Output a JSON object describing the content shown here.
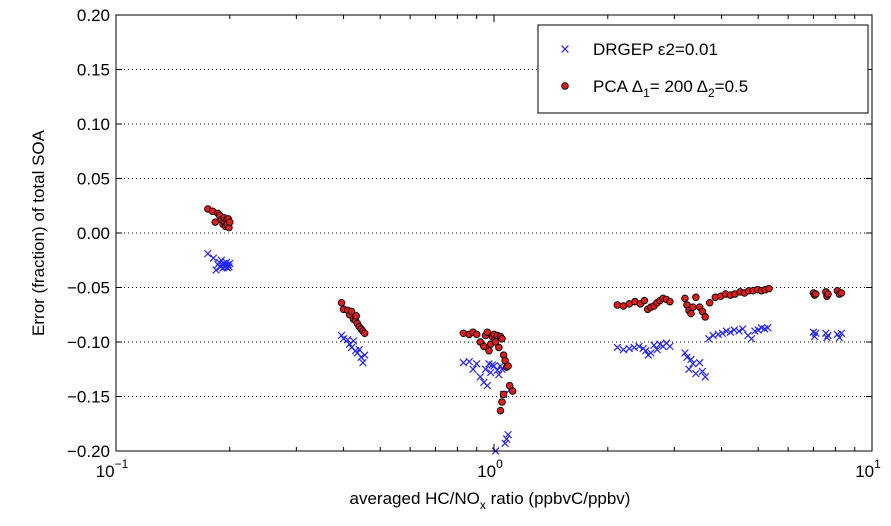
{
  "chart_data": {
    "type": "scatter",
    "xscale": "log",
    "xlim": [
      0.1,
      10
    ],
    "ylim": [
      -0.2,
      0.2
    ],
    "grid": "dotted horizontal",
    "legend_position": "top-right",
    "x_ticks": [
      {
        "value": 0.1,
        "base": "10",
        "exp": "−1"
      },
      {
        "value": 1,
        "base": "10",
        "exp": "0"
      },
      {
        "value": 10,
        "base": "10",
        "exp": "1"
      }
    ],
    "y_ticks": [
      {
        "value": 0.2,
        "label": "0.20"
      },
      {
        "value": 0.15,
        "label": "0.15"
      },
      {
        "value": 0.1,
        "label": "0.10"
      },
      {
        "value": 0.05,
        "label": "0.05"
      },
      {
        "value": 0,
        "label": "0.00"
      },
      {
        "value": -0.05,
        "label": "−0.05"
      },
      {
        "value": -0.1,
        "label": "−0.10"
      },
      {
        "value": -0.15,
        "label": "−0.15"
      },
      {
        "value": -0.2,
        "label": "−0.20"
      }
    ],
    "ylabel": "Error (fraction) of total SOA",
    "xlabel": {
      "before": "averaged HC/NO",
      "sub": "x",
      "after": " ratio (ppbvC/ppbv)"
    },
    "series": [
      {
        "name": "DRGEP ε2=0.01",
        "legend": [
          {
            "t": "DRGEP   ε2=0.01"
          }
        ],
        "marker": "x",
        "color": "#2424ff",
        "points": [
          [
            0.175,
            -0.019
          ],
          [
            0.181,
            -0.023
          ],
          [
            0.184,
            -0.034
          ],
          [
            0.186,
            -0.029
          ],
          [
            0.188,
            -0.027
          ],
          [
            0.189,
            -0.031
          ],
          [
            0.19,
            -0.025
          ],
          [
            0.191,
            -0.029
          ],
          [
            0.192,
            -0.032
          ],
          [
            0.193,
            -0.028
          ],
          [
            0.194,
            -0.031
          ],
          [
            0.195,
            -0.03
          ],
          [
            0.196,
            -0.027
          ],
          [
            0.197,
            -0.032
          ],
          [
            0.198,
            -0.029
          ],
          [
            0.199,
            -0.031
          ],
          [
            0.2,
            -0.028
          ],
          [
            0.395,
            -0.094
          ],
          [
            0.4,
            -0.097
          ],
          [
            0.41,
            -0.098
          ],
          [
            0.415,
            -0.102
          ],
          [
            0.42,
            -0.105
          ],
          [
            0.425,
            -0.099
          ],
          [
            0.43,
            -0.108
          ],
          [
            0.435,
            -0.11
          ],
          [
            0.44,
            -0.107
          ],
          [
            0.445,
            -0.114
          ],
          [
            0.45,
            -0.119
          ],
          [
            0.455,
            -0.112
          ],
          [
            0.83,
            -0.119
          ],
          [
            0.86,
            -0.118
          ],
          [
            0.88,
            -0.125
          ],
          [
            0.9,
            -0.12
          ],
          [
            0.92,
            -0.132
          ],
          [
            0.94,
            -0.137
          ],
          [
            0.95,
            -0.125
          ],
          [
            0.96,
            -0.14
          ],
          [
            0.97,
            -0.12
          ],
          [
            0.98,
            -0.128
          ],
          [
            0.99,
            -0.121
          ],
          [
            1.0,
            -0.122
          ],
          [
            1.01,
            -0.201
          ],
          [
            1.02,
            -0.126
          ],
          [
            1.03,
            -0.13
          ],
          [
            1.04,
            -0.122
          ],
          [
            1.05,
            -0.125
          ],
          [
            1.06,
            -0.148
          ],
          [
            1.07,
            -0.193
          ],
          [
            1.08,
            -0.189
          ],
          [
            1.09,
            -0.185
          ],
          [
            1.1,
            -0.144
          ],
          [
            2.12,
            -0.105
          ],
          [
            2.2,
            -0.107
          ],
          [
            2.28,
            -0.106
          ],
          [
            2.35,
            -0.105
          ],
          [
            2.42,
            -0.104
          ],
          [
            2.48,
            -0.106
          ],
          [
            2.52,
            -0.108
          ],
          [
            2.56,
            -0.112
          ],
          [
            2.6,
            -0.11
          ],
          [
            2.65,
            -0.103
          ],
          [
            2.7,
            -0.107
          ],
          [
            2.75,
            -0.102
          ],
          [
            2.8,
            -0.104
          ],
          [
            2.86,
            -0.101
          ],
          [
            2.92,
            -0.104
          ],
          [
            3.2,
            -0.11
          ],
          [
            3.24,
            -0.114
          ],
          [
            3.28,
            -0.125
          ],
          [
            3.32,
            -0.116
          ],
          [
            3.36,
            -0.12
          ],
          [
            3.42,
            -0.129
          ],
          [
            3.5,
            -0.119
          ],
          [
            3.56,
            -0.127
          ],
          [
            3.62,
            -0.132
          ],
          [
            3.7,
            -0.097
          ],
          [
            3.8,
            -0.094
          ],
          [
            3.92,
            -0.093
          ],
          [
            4.02,
            -0.092
          ],
          [
            4.12,
            -0.09
          ],
          [
            4.22,
            -0.091
          ],
          [
            4.32,
            -0.089
          ],
          [
            4.45,
            -0.09
          ],
          [
            4.55,
            -0.088
          ],
          [
            4.7,
            -0.094
          ],
          [
            4.8,
            -0.097
          ],
          [
            4.9,
            -0.09
          ],
          [
            5.0,
            -0.089
          ],
          [
            5.1,
            -0.087
          ],
          [
            5.2,
            -0.088
          ],
          [
            5.3,
            -0.087
          ],
          [
            7.0,
            -0.091
          ],
          [
            7.05,
            -0.095
          ],
          [
            7.1,
            -0.092
          ],
          [
            7.55,
            -0.092
          ],
          [
            7.6,
            -0.096
          ],
          [
            7.65,
            -0.094
          ],
          [
            8.1,
            -0.093
          ],
          [
            8.2,
            -0.096
          ],
          [
            8.3,
            -0.092
          ]
        ]
      },
      {
        "name": "PCA Δ1= 200 Δ2=0.5",
        "legend": [
          {
            "t": "PCA   Δ"
          },
          {
            "t": "1",
            "sub": true
          },
          {
            "t": "= 200   Δ"
          },
          {
            "t": "2",
            "sub": true
          },
          {
            "t": "=0.5"
          }
        ],
        "marker": "circle",
        "color": "#e01c1c",
        "points": [
          [
            0.175,
            0.022
          ],
          [
            0.18,
            0.02
          ],
          [
            0.183,
            0.01
          ],
          [
            0.186,
            0.018
          ],
          [
            0.188,
            0.016
          ],
          [
            0.19,
            0.012
          ],
          [
            0.192,
            0.008
          ],
          [
            0.193,
            0.014
          ],
          [
            0.194,
            0.01
          ],
          [
            0.195,
            0.006
          ],
          [
            0.196,
            0.012
          ],
          [
            0.197,
            0.008
          ],
          [
            0.198,
            0.013
          ],
          [
            0.199,
            0.005
          ],
          [
            0.2,
            0.01
          ],
          [
            0.395,
            -0.064
          ],
          [
            0.4,
            -0.07
          ],
          [
            0.41,
            -0.071
          ],
          [
            0.415,
            -0.075
          ],
          [
            0.42,
            -0.072
          ],
          [
            0.425,
            -0.079
          ],
          [
            0.43,
            -0.08
          ],
          [
            0.432,
            -0.076
          ],
          [
            0.435,
            -0.083
          ],
          [
            0.44,
            -0.086
          ],
          [
            0.445,
            -0.088
          ],
          [
            0.45,
            -0.09
          ],
          [
            0.455,
            -0.092
          ],
          [
            0.83,
            -0.092
          ],
          [
            0.86,
            -0.093
          ],
          [
            0.88,
            -0.091
          ],
          [
            0.9,
            -0.093
          ],
          [
            0.92,
            -0.1
          ],
          [
            0.94,
            -0.104
          ],
          [
            0.95,
            -0.094
          ],
          [
            0.96,
            -0.091
          ],
          [
            0.97,
            -0.108
          ],
          [
            0.98,
            -0.102
          ],
          [
            0.99,
            -0.095
          ],
          [
            1.0,
            -0.093
          ],
          [
            1.01,
            -0.1
          ],
          [
            1.02,
            -0.094
          ],
          [
            1.03,
            -0.105
          ],
          [
            1.04,
            -0.095
          ],
          [
            1.05,
            -0.097
          ],
          [
            1.06,
            -0.112
          ],
          [
            1.07,
            -0.117
          ],
          [
            1.08,
            -0.123
          ],
          [
            1.09,
            -0.122
          ],
          [
            1.1,
            -0.14
          ],
          [
            1.12,
            -0.145
          ],
          [
            1.04,
            -0.163
          ],
          [
            1.05,
            -0.155
          ],
          [
            1.06,
            -0.148
          ],
          [
            2.12,
            -0.066
          ],
          [
            2.2,
            -0.067
          ],
          [
            2.28,
            -0.065
          ],
          [
            2.36,
            -0.063
          ],
          [
            2.44,
            -0.065
          ],
          [
            2.5,
            -0.062
          ],
          [
            2.55,
            -0.07
          ],
          [
            2.6,
            -0.068
          ],
          [
            2.65,
            -0.067
          ],
          [
            2.7,
            -0.064
          ],
          [
            2.75,
            -0.062
          ],
          [
            2.8,
            -0.06
          ],
          [
            2.86,
            -0.061
          ],
          [
            2.92,
            -0.063
          ],
          [
            3.2,
            -0.06
          ],
          [
            3.24,
            -0.066
          ],
          [
            3.28,
            -0.071
          ],
          [
            3.32,
            -0.074
          ],
          [
            3.36,
            -0.068
          ],
          [
            3.42,
            -0.059
          ],
          [
            3.5,
            -0.068
          ],
          [
            3.56,
            -0.072
          ],
          [
            3.62,
            -0.077
          ],
          [
            3.72,
            -0.064
          ],
          [
            3.85,
            -0.059
          ],
          [
            3.98,
            -0.058
          ],
          [
            4.1,
            -0.056
          ],
          [
            4.22,
            -0.057
          ],
          [
            4.34,
            -0.056
          ],
          [
            4.48,
            -0.054
          ],
          [
            4.6,
            -0.055
          ],
          [
            4.72,
            -0.053
          ],
          [
            4.85,
            -0.053
          ],
          [
            4.98,
            -0.052
          ],
          [
            5.1,
            -0.053
          ],
          [
            5.22,
            -0.052
          ],
          [
            5.34,
            -0.051
          ],
          [
            7.0,
            -0.055
          ],
          [
            7.05,
            -0.057
          ],
          [
            7.1,
            -0.056
          ],
          [
            7.55,
            -0.054
          ],
          [
            7.6,
            -0.058
          ],
          [
            7.65,
            -0.056
          ],
          [
            8.1,
            -0.053
          ],
          [
            8.2,
            -0.056
          ],
          [
            8.3,
            -0.055
          ]
        ]
      }
    ]
  }
}
